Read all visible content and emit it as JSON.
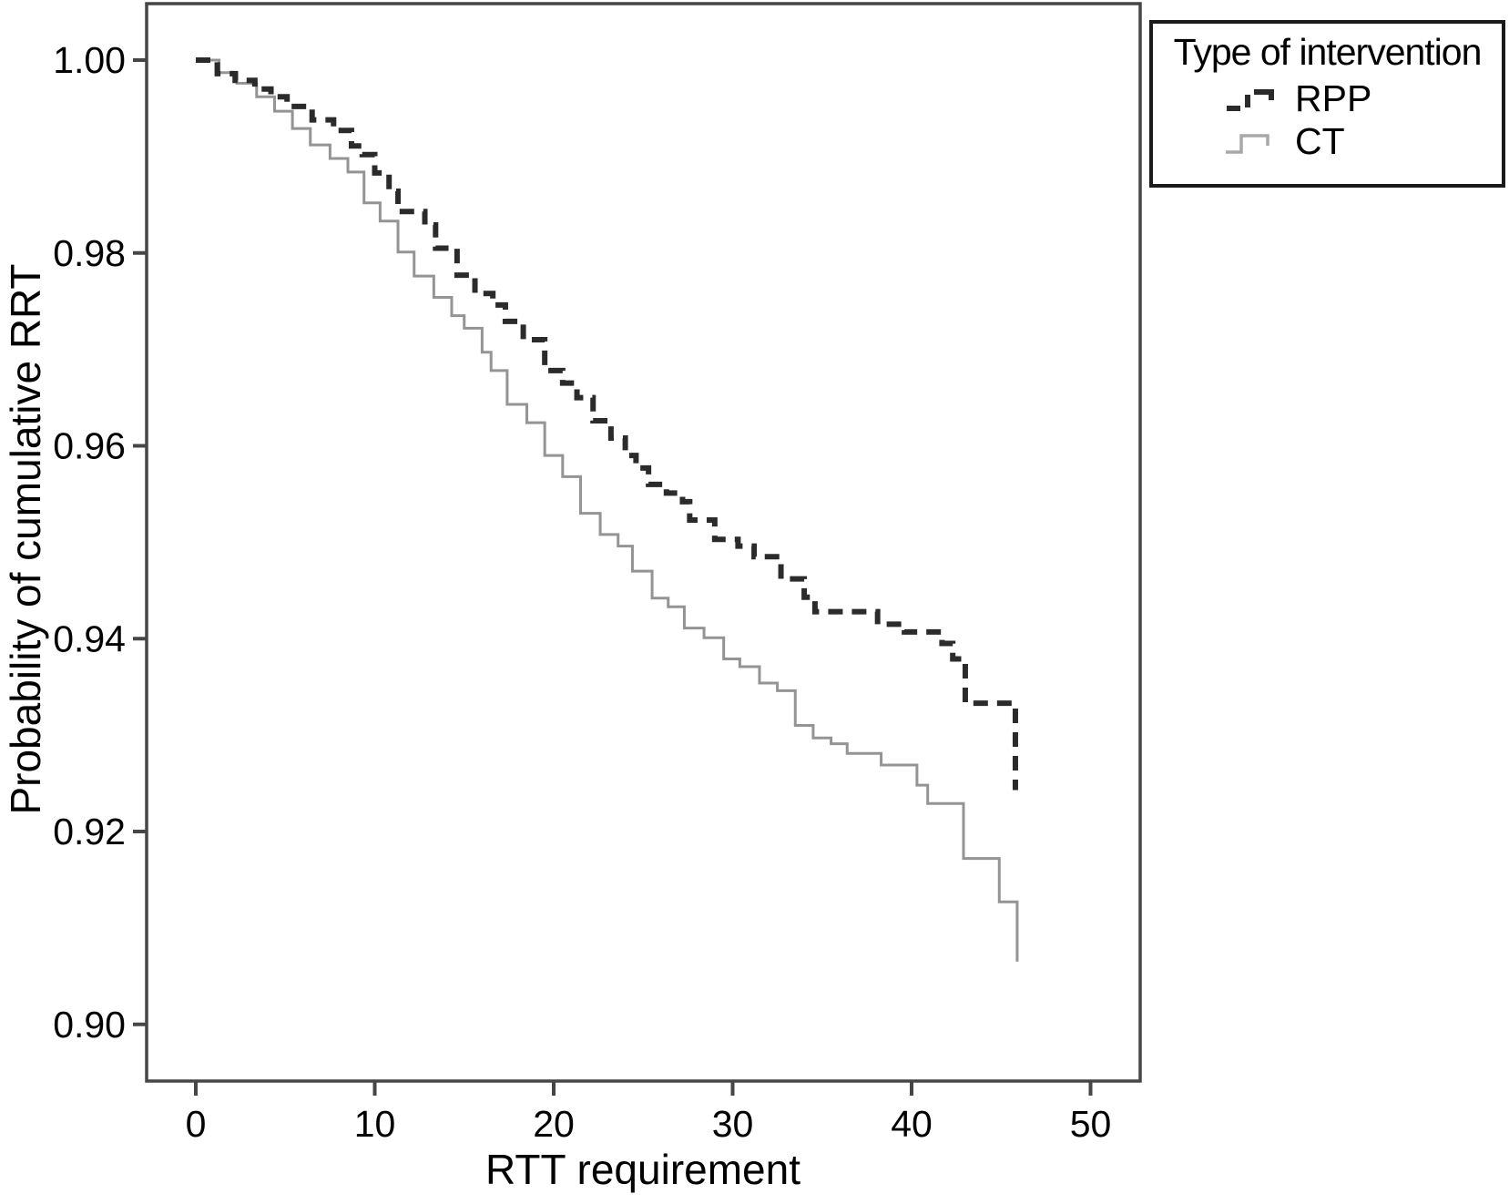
{
  "figure": {
    "background": "#ffffff"
  },
  "chart_data": {
    "type": "line",
    "variant": "kaplan-meier-step",
    "title": "",
    "xlabel": "RTT requirement",
    "ylabel": "Probability of cumulative RRT",
    "xlim": [
      -2.75,
      52.8
    ],
    "ylim": [
      0.894,
      1.006
    ],
    "grid": false,
    "frame_color": "#464646",
    "text_color": "#000000",
    "xticks": [
      {
        "value": 0,
        "label": "0"
      },
      {
        "value": 10,
        "label": "10"
      },
      {
        "value": 20,
        "label": "20"
      },
      {
        "value": 30,
        "label": "30"
      },
      {
        "value": 40,
        "label": "40"
      },
      {
        "value": 50,
        "label": "50"
      }
    ],
    "yticks": [
      {
        "value": 1.0,
        "label": "1.00"
      },
      {
        "value": 0.98,
        "label": "0.98"
      },
      {
        "value": 0.96,
        "label": "0.96"
      },
      {
        "value": 0.94,
        "label": "0.94"
      },
      {
        "value": 0.92,
        "label": "0.92"
      },
      {
        "value": 0.9,
        "label": "0.90"
      }
    ],
    "legend": {
      "title": "Type of intervention",
      "position": "top-right",
      "items": [
        {
          "label": "RPP",
          "line_style": "dashed",
          "color": "#2b2b2b"
        },
        {
          "label": "CT",
          "line_style": "solid",
          "color": "#9c9c9c"
        }
      ]
    },
    "series": [
      {
        "name": "CT",
        "line_style": "solid",
        "color": "#949494",
        "end_x": 45.9,
        "points": [
          [
            0,
            1.0
          ],
          [
            1.3,
            0.9987
          ],
          [
            2.3,
            0.9976
          ],
          [
            3.4,
            0.9962
          ],
          [
            4.4,
            0.9947
          ],
          [
            5.4,
            0.9929
          ],
          [
            6.4,
            0.9912
          ],
          [
            7.5,
            0.9898
          ],
          [
            8.5,
            0.9884
          ],
          [
            9.4,
            0.9852
          ],
          [
            10.3,
            0.9833
          ],
          [
            11.3,
            0.9801
          ],
          [
            12.2,
            0.9776
          ],
          [
            13.3,
            0.9754
          ],
          [
            14.3,
            0.9735
          ],
          [
            15.0,
            0.9722
          ],
          [
            16.0,
            0.9697
          ],
          [
            16.5,
            0.9678
          ],
          [
            17.4,
            0.9643
          ],
          [
            18.5,
            0.9624
          ],
          [
            19.5,
            0.959
          ],
          [
            20.5,
            0.9568
          ],
          [
            21.5,
            0.953
          ],
          [
            22.6,
            0.9508
          ],
          [
            23.6,
            0.9496
          ],
          [
            24.4,
            0.947
          ],
          [
            25.5,
            0.9442
          ],
          [
            26.4,
            0.9433
          ],
          [
            27.3,
            0.9411
          ],
          [
            28.4,
            0.9401
          ],
          [
            29.5,
            0.9379
          ],
          [
            30.4,
            0.9371
          ],
          [
            31.5,
            0.9354
          ],
          [
            32.5,
            0.9346
          ],
          [
            33.5,
            0.931
          ],
          [
            34.5,
            0.9297
          ],
          [
            35.5,
            0.9291
          ],
          [
            36.4,
            0.9281
          ],
          [
            38.3,
            0.9269
          ],
          [
            40.3,
            0.9248
          ],
          [
            40.9,
            0.9229
          ],
          [
            42.9,
            0.9172
          ],
          [
            44.9,
            0.9127
          ],
          [
            45.9,
            0.9065
          ]
        ]
      },
      {
        "name": "RPP",
        "line_style": "dashed",
        "color": "#2b2b2b",
        "end_x": 45.8,
        "points": [
          [
            0,
            1.0
          ],
          [
            1.2,
            0.9986
          ],
          [
            2.2,
            0.9979
          ],
          [
            3.3,
            0.997
          ],
          [
            4.2,
            0.9962
          ],
          [
            5.1,
            0.9952
          ],
          [
            6.5,
            0.9938
          ],
          [
            7.7,
            0.9927
          ],
          [
            8.7,
            0.9911
          ],
          [
            9.3,
            0.9902
          ],
          [
            10.0,
            0.9883
          ],
          [
            10.8,
            0.9864
          ],
          [
            11.3,
            0.9843
          ],
          [
            12.8,
            0.9829
          ],
          [
            13.4,
            0.9805
          ],
          [
            14.6,
            0.9777
          ],
          [
            15.6,
            0.9758
          ],
          [
            16.6,
            0.9746
          ],
          [
            17.3,
            0.9729
          ],
          [
            18.3,
            0.971
          ],
          [
            19.5,
            0.9678
          ],
          [
            20.5,
            0.9665
          ],
          [
            21.3,
            0.965
          ],
          [
            22.2,
            0.9626
          ],
          [
            23.2,
            0.9608
          ],
          [
            24.0,
            0.959
          ],
          [
            24.6,
            0.9577
          ],
          [
            25.3,
            0.956
          ],
          [
            26.3,
            0.9551
          ],
          [
            27.2,
            0.9542
          ],
          [
            27.6,
            0.9523
          ],
          [
            29.0,
            0.9503
          ],
          [
            30.3,
            0.9496
          ],
          [
            31.2,
            0.9485
          ],
          [
            32.7,
            0.9462
          ],
          [
            34.0,
            0.9443
          ],
          [
            34.6,
            0.9428
          ],
          [
            38.1,
            0.9415
          ],
          [
            39.6,
            0.9407
          ],
          [
            41.7,
            0.9395
          ],
          [
            42.3,
            0.9379
          ],
          [
            43.0,
            0.9333
          ],
          [
            45.8,
            0.9243
          ]
        ]
      }
    ]
  }
}
